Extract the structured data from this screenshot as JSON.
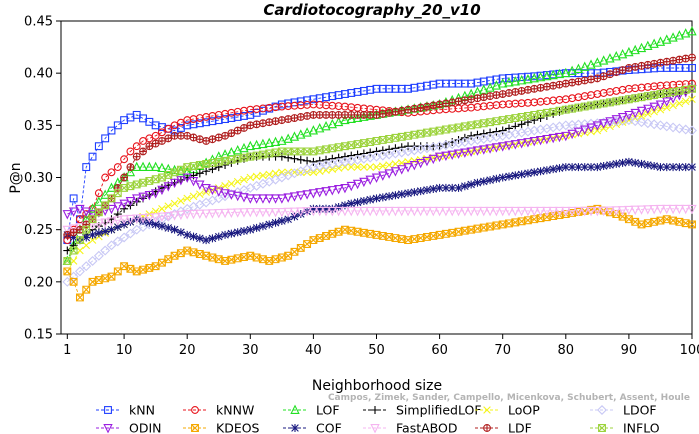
{
  "chart_data": {
    "type": "line",
    "title": "Cardiotocography_20_v10",
    "xlabel": "Neighborhood size",
    "ylabel": "P@n",
    "xlim": [
      0,
      100
    ],
    "ylim": [
      0.15,
      0.45
    ],
    "x_ticks": [
      1,
      10,
      20,
      30,
      40,
      50,
      60,
      70,
      80,
      90,
      100
    ],
    "y_ticks": [
      0.15,
      0.2,
      0.25,
      0.3,
      0.35,
      0.4,
      0.45
    ],
    "legend_position": "bottom",
    "grid": false,
    "series": [
      {
        "name": "kNN",
        "color": "#1f3fff",
        "marker": "square",
        "points": [
          [
            1,
            0.24
          ],
          [
            2,
            0.28
          ],
          [
            3,
            0.26
          ],
          [
            4,
            0.31
          ],
          [
            6,
            0.33
          ],
          [
            8,
            0.345
          ],
          [
            10,
            0.355
          ],
          [
            12,
            0.36
          ],
          [
            15,
            0.35
          ],
          [
            18,
            0.345
          ],
          [
            20,
            0.35
          ],
          [
            25,
            0.355
          ],
          [
            30,
            0.36
          ],
          [
            35,
            0.37
          ],
          [
            40,
            0.375
          ],
          [
            45,
            0.38
          ],
          [
            50,
            0.385
          ],
          [
            55,
            0.385
          ],
          [
            60,
            0.39
          ],
          [
            65,
            0.39
          ],
          [
            70,
            0.395
          ],
          [
            75,
            0.397
          ],
          [
            80,
            0.4
          ],
          [
            85,
            0.4
          ],
          [
            90,
            0.403
          ],
          [
            95,
            0.405
          ],
          [
            100,
            0.405
          ]
        ]
      },
      {
        "name": "kNNW",
        "color": "#e8141c",
        "marker": "circle",
        "points": [
          [
            1,
            0.24
          ],
          [
            2,
            0.25
          ],
          [
            3,
            0.26
          ],
          [
            5,
            0.27
          ],
          [
            7,
            0.3
          ],
          [
            9,
            0.31
          ],
          [
            11,
            0.325
          ],
          [
            13,
            0.335
          ],
          [
            15,
            0.34
          ],
          [
            18,
            0.35
          ],
          [
            20,
            0.355
          ],
          [
            25,
            0.36
          ],
          [
            30,
            0.365
          ],
          [
            35,
            0.368
          ],
          [
            40,
            0.37
          ],
          [
            45,
            0.368
          ],
          [
            50,
            0.365
          ],
          [
            55,
            0.362
          ],
          [
            60,
            0.365
          ],
          [
            65,
            0.367
          ],
          [
            70,
            0.37
          ],
          [
            75,
            0.372
          ],
          [
            80,
            0.375
          ],
          [
            85,
            0.38
          ],
          [
            90,
            0.385
          ],
          [
            95,
            0.388
          ],
          [
            100,
            0.39
          ]
        ]
      },
      {
        "name": "LOF",
        "color": "#22e022",
        "marker": "triangle-up",
        "points": [
          [
            1,
            0.22
          ],
          [
            3,
            0.25
          ],
          [
            5,
            0.27
          ],
          [
            8,
            0.29
          ],
          [
            10,
            0.3
          ],
          [
            12,
            0.31
          ],
          [
            15,
            0.31
          ],
          [
            20,
            0.305
          ],
          [
            25,
            0.32
          ],
          [
            30,
            0.33
          ],
          [
            35,
            0.335
          ],
          [
            40,
            0.345
          ],
          [
            45,
            0.355
          ],
          [
            50,
            0.36
          ],
          [
            55,
            0.365
          ],
          [
            60,
            0.37
          ],
          [
            65,
            0.38
          ],
          [
            70,
            0.39
          ],
          [
            75,
            0.395
          ],
          [
            80,
            0.4
          ],
          [
            85,
            0.41
          ],
          [
            90,
            0.42
          ],
          [
            95,
            0.43
          ],
          [
            100,
            0.44
          ]
        ]
      },
      {
        "name": "SimplifiedLOF",
        "color": "#000000",
        "marker": "plus",
        "points": [
          [
            1,
            0.23
          ],
          [
            3,
            0.24
          ],
          [
            5,
            0.25
          ],
          [
            8,
            0.26
          ],
          [
            10,
            0.27
          ],
          [
            13,
            0.28
          ],
          [
            16,
            0.29
          ],
          [
            20,
            0.3
          ],
          [
            25,
            0.31
          ],
          [
            30,
            0.32
          ],
          [
            35,
            0.32
          ],
          [
            40,
            0.315
          ],
          [
            45,
            0.32
          ],
          [
            50,
            0.325
          ],
          [
            55,
            0.33
          ],
          [
            60,
            0.33
          ],
          [
            65,
            0.34
          ],
          [
            70,
            0.345
          ],
          [
            75,
            0.355
          ],
          [
            80,
            0.365
          ],
          [
            85,
            0.37
          ],
          [
            90,
            0.375
          ],
          [
            95,
            0.38
          ],
          [
            100,
            0.382
          ]
        ]
      },
      {
        "name": "LoOP",
        "color": "#f5f51a",
        "marker": "cross",
        "points": [
          [
            1,
            0.21
          ],
          [
            3,
            0.23
          ],
          [
            5,
            0.24
          ],
          [
            8,
            0.25
          ],
          [
            12,
            0.26
          ],
          [
            16,
            0.27
          ],
          [
            20,
            0.28
          ],
          [
            25,
            0.29
          ],
          [
            30,
            0.3
          ],
          [
            35,
            0.305
          ],
          [
            40,
            0.305
          ],
          [
            45,
            0.31
          ],
          [
            50,
            0.31
          ],
          [
            55,
            0.315
          ],
          [
            60,
            0.32
          ],
          [
            65,
            0.325
          ],
          [
            70,
            0.33
          ],
          [
            75,
            0.335
          ],
          [
            80,
            0.34
          ],
          [
            85,
            0.345
          ],
          [
            90,
            0.355
          ],
          [
            95,
            0.365
          ],
          [
            100,
            0.375
          ]
        ]
      },
      {
        "name": "LDOF",
        "color": "#c8c8f5",
        "marker": "diamond",
        "points": [
          [
            1,
            0.2
          ],
          [
            3,
            0.21
          ],
          [
            5,
            0.22
          ],
          [
            8,
            0.235
          ],
          [
            12,
            0.25
          ],
          [
            16,
            0.26
          ],
          [
            20,
            0.27
          ],
          [
            25,
            0.28
          ],
          [
            30,
            0.29
          ],
          [
            35,
            0.3
          ],
          [
            40,
            0.31
          ],
          [
            45,
            0.315
          ],
          [
            50,
            0.32
          ],
          [
            55,
            0.325
          ],
          [
            60,
            0.33
          ],
          [
            65,
            0.335
          ],
          [
            70,
            0.34
          ],
          [
            75,
            0.345
          ],
          [
            80,
            0.35
          ],
          [
            85,
            0.352
          ],
          [
            90,
            0.355
          ],
          [
            95,
            0.35
          ],
          [
            100,
            0.345
          ]
        ]
      },
      {
        "name": "ODIN",
        "color": "#9a1ee0",
        "marker": "triangle-down",
        "points": [
          [
            1,
            0.265
          ],
          [
            3,
            0.27
          ],
          [
            5,
            0.265
          ],
          [
            8,
            0.27
          ],
          [
            10,
            0.275
          ],
          [
            12,
            0.28
          ],
          [
            15,
            0.285
          ],
          [
            18,
            0.295
          ],
          [
            20,
            0.3
          ],
          [
            23,
            0.29
          ],
          [
            26,
            0.285
          ],
          [
            30,
            0.28
          ],
          [
            35,
            0.28
          ],
          [
            40,
            0.285
          ],
          [
            45,
            0.29
          ],
          [
            50,
            0.3
          ],
          [
            55,
            0.31
          ],
          [
            60,
            0.32
          ],
          [
            65,
            0.325
          ],
          [
            70,
            0.33
          ],
          [
            75,
            0.335
          ],
          [
            80,
            0.34
          ],
          [
            85,
            0.35
          ],
          [
            90,
            0.36
          ],
          [
            95,
            0.37
          ],
          [
            100,
            0.385
          ]
        ]
      },
      {
        "name": "KDEOS",
        "color": "#f5a800",
        "marker": "square-x",
        "points": [
          [
            1,
            0.21
          ],
          [
            2,
            0.2
          ],
          [
            3,
            0.185
          ],
          [
            5,
            0.2
          ],
          [
            8,
            0.205
          ],
          [
            10,
            0.215
          ],
          [
            12,
            0.21
          ],
          [
            15,
            0.215
          ],
          [
            18,
            0.225
          ],
          [
            20,
            0.23
          ],
          [
            23,
            0.225
          ],
          [
            26,
            0.22
          ],
          [
            30,
            0.225
          ],
          [
            33,
            0.22
          ],
          [
            36,
            0.225
          ],
          [
            40,
            0.24
          ],
          [
            45,
            0.25
          ],
          [
            50,
            0.245
          ],
          [
            55,
            0.24
          ],
          [
            60,
            0.245
          ],
          [
            65,
            0.25
          ],
          [
            70,
            0.255
          ],
          [
            75,
            0.26
          ],
          [
            80,
            0.265
          ],
          [
            85,
            0.27
          ],
          [
            88,
            0.265
          ],
          [
            92,
            0.255
          ],
          [
            96,
            0.26
          ],
          [
            100,
            0.255
          ]
        ]
      },
      {
        "name": "COF",
        "color": "#1a1a80",
        "marker": "asterisk",
        "points": [
          [
            1,
            0.245
          ],
          [
            3,
            0.24
          ],
          [
            5,
            0.245
          ],
          [
            8,
            0.25
          ],
          [
            10,
            0.255
          ],
          [
            12,
            0.26
          ],
          [
            15,
            0.255
          ],
          [
            18,
            0.25
          ],
          [
            20,
            0.245
          ],
          [
            23,
            0.24
          ],
          [
            26,
            0.245
          ],
          [
            30,
            0.25
          ],
          [
            33,
            0.255
          ],
          [
            36,
            0.26
          ],
          [
            40,
            0.27
          ],
          [
            43,
            0.27
          ],
          [
            46,
            0.275
          ],
          [
            50,
            0.28
          ],
          [
            55,
            0.285
          ],
          [
            60,
            0.29
          ],
          [
            63,
            0.29
          ],
          [
            66,
            0.295
          ],
          [
            70,
            0.3
          ],
          [
            75,
            0.305
          ],
          [
            80,
            0.31
          ],
          [
            85,
            0.31
          ],
          [
            90,
            0.315
          ],
          [
            95,
            0.31
          ],
          [
            100,
            0.31
          ]
        ]
      },
      {
        "name": "FastABOD",
        "color": "#f5b4f0",
        "marker": "triangle-down",
        "points": [
          [
            1,
            0.25
          ],
          [
            5,
            0.255
          ],
          [
            10,
            0.26
          ],
          [
            15,
            0.262
          ],
          [
            20,
            0.265
          ],
          [
            25,
            0.266
          ],
          [
            30,
            0.267
          ],
          [
            35,
            0.267
          ],
          [
            40,
            0.268
          ],
          [
            45,
            0.268
          ],
          [
            50,
            0.268
          ],
          [
            55,
            0.268
          ],
          [
            60,
            0.268
          ],
          [
            65,
            0.268
          ],
          [
            70,
            0.268
          ],
          [
            75,
            0.268
          ],
          [
            80,
            0.268
          ],
          [
            85,
            0.268
          ],
          [
            90,
            0.269
          ],
          [
            95,
            0.27
          ],
          [
            100,
            0.27
          ]
        ]
      },
      {
        "name": "LDF",
        "color": "#b01e1e",
        "marker": "circle-plus",
        "points": [
          [
            1,
            0.245
          ],
          [
            3,
            0.25
          ],
          [
            5,
            0.26
          ],
          [
            8,
            0.28
          ],
          [
            10,
            0.3
          ],
          [
            12,
            0.32
          ],
          [
            14,
            0.33
          ],
          [
            16,
            0.335
          ],
          [
            18,
            0.34
          ],
          [
            20,
            0.34
          ],
          [
            23,
            0.335
          ],
          [
            26,
            0.34
          ],
          [
            30,
            0.35
          ],
          [
            35,
            0.355
          ],
          [
            40,
            0.36
          ],
          [
            45,
            0.36
          ],
          [
            50,
            0.36
          ],
          [
            55,
            0.365
          ],
          [
            60,
            0.37
          ],
          [
            65,
            0.375
          ],
          [
            70,
            0.38
          ],
          [
            75,
            0.385
          ],
          [
            80,
            0.39
          ],
          [
            85,
            0.395
          ],
          [
            90,
            0.405
          ],
          [
            95,
            0.41
          ],
          [
            100,
            0.415
          ]
        ]
      },
      {
        "name": "INFLO",
        "color": "#9cd33c",
        "marker": "square-x",
        "points": [
          [
            1,
            0.22
          ],
          [
            3,
            0.24
          ],
          [
            5,
            0.26
          ],
          [
            8,
            0.28
          ],
          [
            10,
            0.29
          ],
          [
            13,
            0.295
          ],
          [
            16,
            0.3
          ],
          [
            20,
            0.31
          ],
          [
            25,
            0.315
          ],
          [
            30,
            0.32
          ],
          [
            35,
            0.325
          ],
          [
            40,
            0.325
          ],
          [
            45,
            0.33
          ],
          [
            50,
            0.335
          ],
          [
            55,
            0.34
          ],
          [
            60,
            0.345
          ],
          [
            65,
            0.35
          ],
          [
            70,
            0.355
          ],
          [
            75,
            0.36
          ],
          [
            80,
            0.365
          ],
          [
            85,
            0.37
          ],
          [
            90,
            0.375
          ],
          [
            95,
            0.38
          ],
          [
            100,
            0.385
          ]
        ]
      }
    ],
    "watermark": [
      "Campos, Zimek, Sander, Campello, Micenkova, Schubert, Assent, Houle"
    ]
  }
}
